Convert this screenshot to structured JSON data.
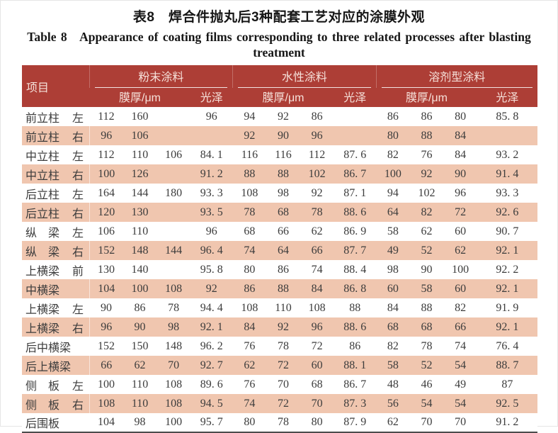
{
  "title": {
    "zh": "表8　焊合件抛丸后3种配套工艺对应的涂膜外观",
    "en": "Table 8　Appearance of coating films corresponding to three related processes after blasting treatment"
  },
  "colors": {
    "header_bg": "#ad3e36",
    "header_text": "#f6e1da",
    "row_alt_bg": "#f0c6af",
    "bottom_rule": "#4c4c4c"
  },
  "header": {
    "item_label": "项目",
    "groups": [
      {
        "name": "粉末涂料",
        "thickness_label": "膜厚/μm",
        "gloss_label": "光泽"
      },
      {
        "name": "水性涂料",
        "thickness_label": "膜厚/μm",
        "gloss_label": "光泽"
      },
      {
        "name": "溶剂型涂料",
        "thickness_label": "膜厚/μm",
        "gloss_label": "光泽"
      }
    ]
  },
  "rows": [
    {
      "name": "前立柱",
      "pos": "左",
      "powder": [
        "112",
        "160",
        "",
        "96"
      ],
      "water": [
        "94",
        "92",
        "86",
        ""
      ],
      "solvent": [
        "86",
        "86",
        "80",
        "85. 8"
      ]
    },
    {
      "name": "前立柱",
      "pos": "右",
      "powder": [
        "96",
        "106",
        "",
        ""
      ],
      "water": [
        "92",
        "90",
        "96",
        ""
      ],
      "solvent": [
        "80",
        "88",
        "84",
        ""
      ]
    },
    {
      "name": "中立柱",
      "pos": "左",
      "powder": [
        "112",
        "110",
        "106",
        "84. 1"
      ],
      "water": [
        "116",
        "116",
        "112",
        "87. 6"
      ],
      "solvent": [
        "82",
        "76",
        "84",
        "93. 2"
      ]
    },
    {
      "name": "中立柱",
      "pos": "右",
      "powder": [
        "100",
        "126",
        "",
        "91. 2"
      ],
      "water": [
        "88",
        "88",
        "102",
        "86. 7"
      ],
      "solvent": [
        "100",
        "92",
        "90",
        "91. 4"
      ]
    },
    {
      "name": "后立柱",
      "pos": "左",
      "powder": [
        "164",
        "144",
        "180",
        "93. 3"
      ],
      "water": [
        "108",
        "98",
        "92",
        "87. 1"
      ],
      "solvent": [
        "94",
        "102",
        "96",
        "93. 3"
      ]
    },
    {
      "name": "后立柱",
      "pos": "右",
      "powder": [
        "120",
        "130",
        "",
        "93. 5"
      ],
      "water": [
        "78",
        "68",
        "78",
        "88. 6"
      ],
      "solvent": [
        "64",
        "82",
        "72",
        "92. 6"
      ]
    },
    {
      "name": "纵　梁",
      "pos": "左",
      "powder": [
        "106",
        "110",
        "",
        "96"
      ],
      "water": [
        "68",
        "66",
        "62",
        "86. 9"
      ],
      "solvent": [
        "58",
        "62",
        "60",
        "90. 7"
      ]
    },
    {
      "name": "纵　梁",
      "pos": "右",
      "powder": [
        "152",
        "148",
        "144",
        "96. 4"
      ],
      "water": [
        "74",
        "64",
        "66",
        "87. 7"
      ],
      "solvent": [
        "49",
        "52",
        "62",
        "92. 1"
      ]
    },
    {
      "name": "上横梁",
      "pos": "前",
      "powder": [
        "130",
        "140",
        "",
        "95. 8"
      ],
      "water": [
        "80",
        "86",
        "74",
        "88. 4"
      ],
      "solvent": [
        "98",
        "90",
        "100",
        "92. 2"
      ]
    },
    {
      "name": "中横梁",
      "pos": "",
      "powder": [
        "104",
        "100",
        "108",
        "92"
      ],
      "water": [
        "86",
        "88",
        "84",
        "86. 8"
      ],
      "solvent": [
        "60",
        "58",
        "60",
        "92. 1"
      ]
    },
    {
      "name": "上横梁",
      "pos": "左",
      "powder": [
        "90",
        "86",
        "78",
        "94. 4"
      ],
      "water": [
        "108",
        "110",
        "108",
        "88"
      ],
      "solvent": [
        "84",
        "88",
        "82",
        "91. 9"
      ]
    },
    {
      "name": "上横梁",
      "pos": "右",
      "powder": [
        "96",
        "90",
        "98",
        "92. 1"
      ],
      "water": [
        "84",
        "92",
        "96",
        "88. 6"
      ],
      "solvent": [
        "68",
        "68",
        "66",
        "92. 1"
      ]
    },
    {
      "name": "后中横梁",
      "pos": "",
      "powder": [
        "152",
        "150",
        "148",
        "96. 2"
      ],
      "water": [
        "76",
        "78",
        "72",
        "86"
      ],
      "solvent": [
        "82",
        "78",
        "74",
        "76. 4"
      ]
    },
    {
      "name": "后上横梁",
      "pos": "",
      "powder": [
        "66",
        "62",
        "70",
        "92. 7"
      ],
      "water": [
        "62",
        "72",
        "60",
        "88. 1"
      ],
      "solvent": [
        "58",
        "52",
        "54",
        "88. 7"
      ]
    },
    {
      "name": "侧　板",
      "pos": "左",
      "powder": [
        "100",
        "110",
        "108",
        "89. 6"
      ],
      "water": [
        "76",
        "70",
        "68",
        "86. 7"
      ],
      "solvent": [
        "48",
        "46",
        "49",
        "87"
      ]
    },
    {
      "name": "侧　板",
      "pos": "右",
      "powder": [
        "108",
        "110",
        "108",
        "94. 5"
      ],
      "water": [
        "74",
        "72",
        "70",
        "87. 3"
      ],
      "solvent": [
        "56",
        "54",
        "54",
        "92. 5"
      ]
    },
    {
      "name": "后围板",
      "pos": "",
      "powder": [
        "104",
        "98",
        "100",
        "95. 7"
      ],
      "water": [
        "80",
        "78",
        "80",
        "87. 9"
      ],
      "solvent": [
        "62",
        "70",
        "70",
        "91. 2"
      ]
    }
  ]
}
